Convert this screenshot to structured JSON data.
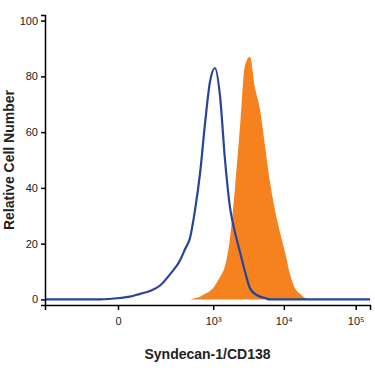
{
  "chart_data": {
    "type": "line",
    "x_label": "Syndecan-1/CD138",
    "y_label": "Relative Cell Number",
    "log": "x",
    "grid": false,
    "xlim": [
      -466,
      158000
    ],
    "xticks": [
      0,
      {
        "value": 1000,
        "label": "10³"
      },
      {
        "value": 10000,
        "label": "10⁴"
      },
      {
        "value": 100000,
        "label": "10⁵"
      }
    ],
    "ylim": [
      -2,
      102
    ],
    "yticks": [
      0,
      20,
      40,
      60,
      80,
      100
    ],
    "x": [
      -466,
      -270,
      -119,
      -39,
      3,
      23,
      51,
      89,
      142,
      214,
      313,
      376,
      450,
      537,
      638,
      758,
      897,
      1062,
      1255,
      1482,
      1747,
      2059,
      2425,
      2850,
      3355,
      3945,
      4640,
      5455,
      6410,
      7530,
      8845,
      10385,
      12200,
      14300,
      16800,
      19750,
      23200,
      31950,
      60600,
      114800,
      158000
    ],
    "series": [
      {
        "type": "line",
        "color": "#27449a",
        "values": [
          0,
          0,
          0,
          0,
          0.5,
          1,
          2,
          3,
          5,
          9,
          14,
          18,
          22,
          32,
          45,
          63,
          78,
          83,
          73,
          50,
          33,
          24,
          17,
          10,
          4,
          2,
          1,
          0.5,
          0,
          0,
          0,
          0,
          0,
          0,
          0,
          0,
          0,
          0,
          0,
          0,
          0
        ]
      },
      {
        "type": "area",
        "color": "#f5821f",
        "values": [
          0,
          0,
          0,
          0,
          0,
          0,
          0,
          0,
          0,
          0,
          0,
          0,
          0,
          0.5,
          1,
          2,
          3,
          5,
          8,
          12,
          22,
          40,
          62,
          84,
          87,
          76,
          68,
          55,
          42,
          32,
          24,
          17,
          9,
          4,
          2,
          0.5,
          0,
          0,
          0,
          0,
          0
        ]
      }
    ]
  }
}
